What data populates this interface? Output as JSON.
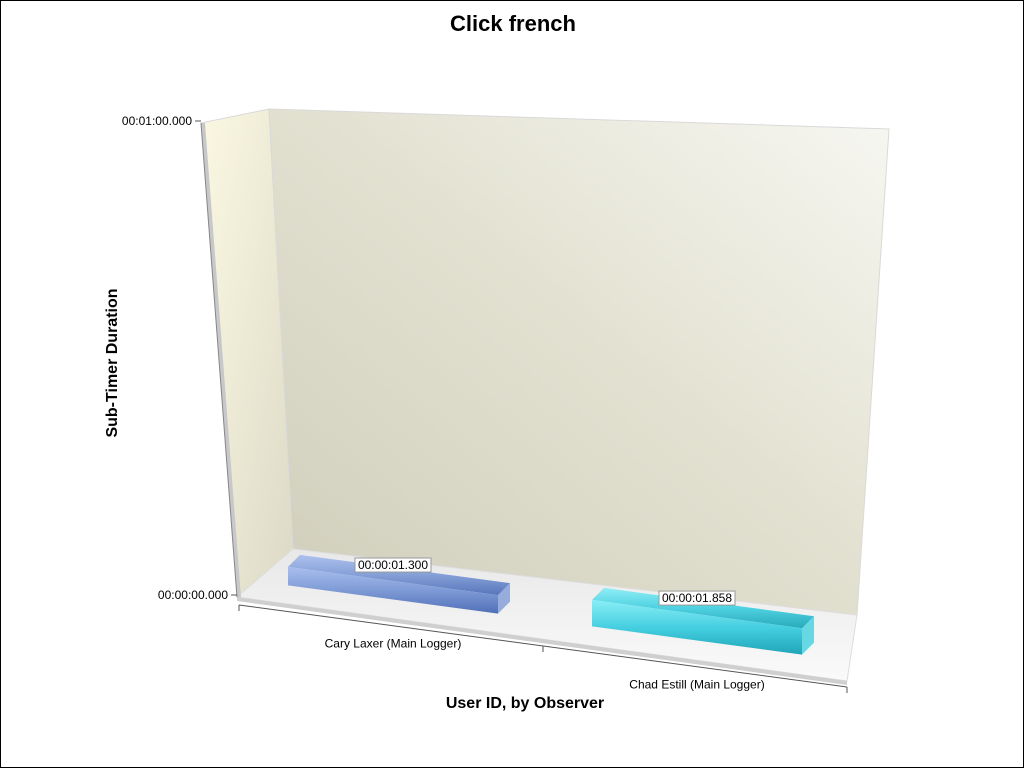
{
  "chart_data": {
    "type": "bar",
    "title": "Click french",
    "xlabel": "User ID, by Observer",
    "ylabel": "Sub-Timer Duration",
    "categories": [
      "Cary Laxer (Main Logger)",
      "Chad Estill (Main Logger)"
    ],
    "values": [
      1.3,
      1.858
    ],
    "data_labels": [
      "00:00:01.300",
      "00:00:01.858"
    ],
    "y_ticks": [
      {
        "value": 0,
        "label": "00:00:00.000"
      },
      {
        "value": 60,
        "label": "00:01:00.000"
      }
    ],
    "ylim": [
      0,
      60
    ],
    "unit": "seconds",
    "three_d": true,
    "grid": false,
    "legend": "none",
    "colors": [
      "#7f9bd6",
      "#45cfe0"
    ],
    "wall_colors": {
      "back": "#e6e5d5",
      "side": "#f4f2dc",
      "floor": "#f2f2f2"
    }
  }
}
